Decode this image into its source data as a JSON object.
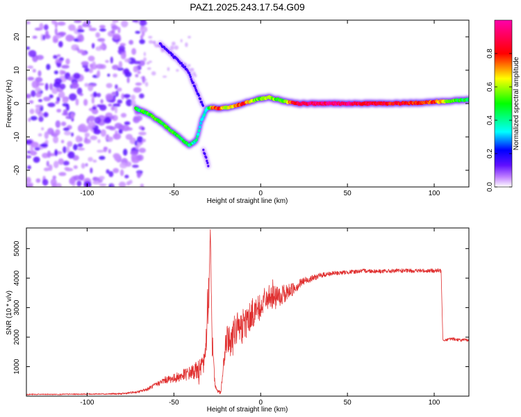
{
  "chart_data": [
    {
      "type": "heatmap",
      "title": "PAZ1.2025.243.17.54.G09",
      "xlabel": "Height of straight line (km)",
      "ylabel": "Frequency (Hz)",
      "xlim": [
        -135,
        120
      ],
      "ylim": [
        -25,
        25
      ],
      "xticks": [
        -100,
        -50,
        0,
        50,
        100
      ],
      "yticks": [
        -20,
        -10,
        0,
        10,
        20
      ],
      "colorbar": {
        "label": "Normalized spectral amplitude",
        "range": [
          0.0,
          1.0
        ],
        "ticks": [
          0.0,
          0.2,
          0.4,
          0.6,
          0.8
        ],
        "tick_labels": [
          "0.0",
          "0.2",
          "0.4",
          "0.6",
          "0.8"
        ]
      },
      "ridge": {
        "x": [
          -72,
          -65,
          -58,
          -52,
          -46,
          -41,
          -37,
          -34,
          -31,
          -28,
          -24,
          -20,
          -15,
          -10,
          -5,
          0,
          5,
          10,
          15,
          20,
          30,
          50,
          70,
          90,
          100,
          110,
          120
        ],
        "y": [
          -1.5,
          -3.0,
          -5.5,
          -8.0,
          -10.5,
          -12.5,
          -11.0,
          -5.0,
          -1.5,
          -1.2,
          -1.5,
          -1.2,
          -0.8,
          0.0,
          0.8,
          1.5,
          1.8,
          1.2,
          0.5,
          0.0,
          0.0,
          0.0,
          0.0,
          0.2,
          0.5,
          0.8,
          1.2
        ],
        "amplitude": [
          0.45,
          0.5,
          0.5,
          0.5,
          0.45,
          0.4,
          0.35,
          0.3,
          0.3,
          0.75,
          0.9,
          0.6,
          0.7,
          0.9,
          0.6,
          0.55,
          0.7,
          0.5,
          0.6,
          0.95,
          1.0,
          1.0,
          0.9,
          0.85,
          0.8,
          0.55,
          0.45
        ]
      },
      "upper_branch": {
        "x": [
          -58,
          -52,
          -47,
          -42,
          -38,
          -35,
          -33
        ],
        "y": [
          18.0,
          15.0,
          12.5,
          10.0,
          5.0,
          1.5,
          -1.0
        ]
      },
      "lower_spur": {
        "x": [
          -33,
          -31,
          -30
        ],
        "y": [
          -14.0,
          -17.0,
          -19.0
        ]
      },
      "noise_region": {
        "x_range": [
          -135,
          -67
        ],
        "y_range": [
          -25,
          25
        ]
      }
    },
    {
      "type": "line",
      "xlabel": "Height of straight line (km)",
      "ylabel": "SNR (10 * v/v)",
      "xlim": [
        -135,
        120
      ],
      "ylim": [
        0,
        5700
      ],
      "xticks": [
        -100,
        -50,
        0,
        50,
        100
      ],
      "yticks": [
        1000,
        2000,
        3000,
        4000,
        5000
      ],
      "series": [
        {
          "name": "SNR",
          "color": "#e03030",
          "x": [
            -135,
            -120,
            -100,
            -80,
            -70,
            -65,
            -60,
            -55,
            -50,
            -45,
            -40,
            -35,
            -32,
            -30,
            -29,
            -28,
            -27,
            -26,
            -25,
            -23,
            -20,
            -15,
            -10,
            -5,
            0,
            5,
            10,
            15,
            20,
            25,
            30,
            35,
            40,
            50,
            60,
            70,
            80,
            90,
            100,
            104,
            105,
            106,
            110,
            115,
            120
          ],
          "y": [
            60,
            60,
            70,
            80,
            150,
            250,
            400,
            550,
            600,
            700,
            800,
            900,
            1200,
            3500,
            5700,
            2000,
            900,
            300,
            200,
            100,
            1800,
            2200,
            2400,
            2800,
            3100,
            3400,
            3300,
            3500,
            3700,
            3900,
            4000,
            4100,
            4150,
            4200,
            4250,
            4230,
            4250,
            4250,
            4250,
            4250,
            1900,
            1900,
            1950,
            1900,
            1900
          ],
          "noise_amplitude": [
            20,
            20,
            20,
            30,
            40,
            60,
            80,
            120,
            150,
            200,
            250,
            350,
            500,
            600,
            0,
            600,
            300,
            100,
            100,
            40,
            500,
            600,
            600,
            500,
            450,
            400,
            400,
            300,
            200,
            150,
            100,
            90,
            80,
            70,
            70,
            70,
            70,
            70,
            70,
            70,
            0,
            50,
            50,
            50,
            50
          ]
        }
      ]
    }
  ]
}
